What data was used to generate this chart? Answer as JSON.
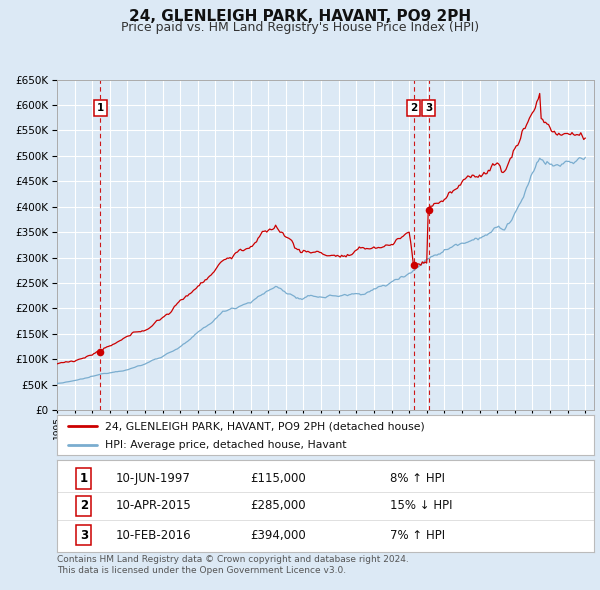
{
  "title": "24, GLENLEIGH PARK, HAVANT, PO9 2PH",
  "subtitle": "Price paid vs. HM Land Registry's House Price Index (HPI)",
  "title_fontsize": 11,
  "subtitle_fontsize": 9,
  "bg_color": "#dce9f5",
  "plot_bg_color": "#dce9f5",
  "grid_color": "#ffffff",
  "red_line_color": "#cc0000",
  "blue_line_color": "#7aadcf",
  "xlim_start": 1995.0,
  "xlim_end": 2025.5,
  "ylim_min": 0,
  "ylim_max": 650000,
  "sale_points": [
    {
      "year": 1997.45,
      "price": 115000,
      "label": "1"
    },
    {
      "year": 2015.27,
      "price": 285000,
      "label": "2"
    },
    {
      "year": 2016.11,
      "price": 394000,
      "label": "3"
    }
  ],
  "legend_entries": [
    "24, GLENLEIGH PARK, HAVANT, PO9 2PH (detached house)",
    "HPI: Average price, detached house, Havant"
  ],
  "table_rows": [
    {
      "num": "1",
      "date": "10-JUN-1997",
      "price": "£115,000",
      "hpi": "8% ↑ HPI"
    },
    {
      "num": "2",
      "date": "10-APR-2015",
      "price": "£285,000",
      "hpi": "15% ↓ HPI"
    },
    {
      "num": "3",
      "date": "10-FEB-2016",
      "price": "£394,000",
      "hpi": "7% ↑ HPI"
    }
  ],
  "footnote1": "Contains HM Land Registry data © Crown copyright and database right 2024.",
  "footnote2": "This data is licensed under the Open Government Licence v3.0."
}
